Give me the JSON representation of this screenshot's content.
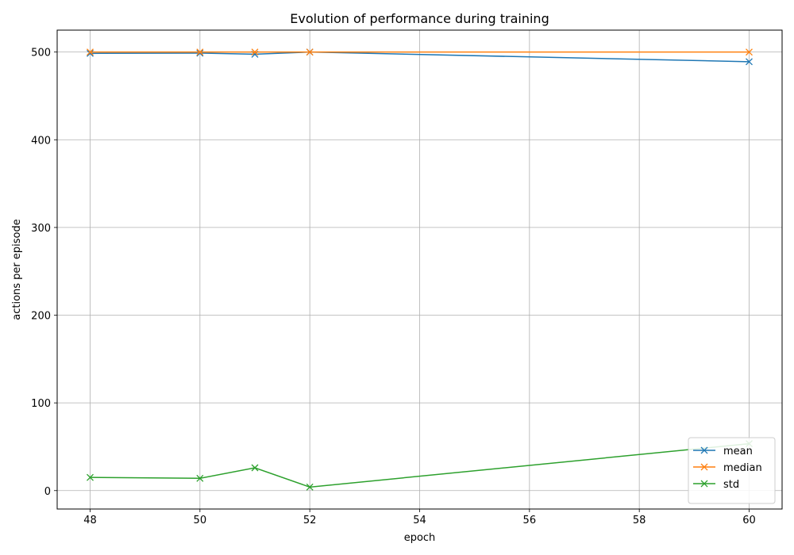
{
  "chart_data": {
    "type": "line",
    "title": "Evolution of performance during training",
    "xlabel": "epoch",
    "ylabel": "actions per episode",
    "x": [
      48,
      50,
      51,
      52,
      60
    ],
    "xlim": [
      47.4,
      60.6
    ],
    "ylim": [
      -21,
      525
    ],
    "xticks": [
      48,
      50,
      52,
      54,
      56,
      58,
      60
    ],
    "yticks": [
      0,
      100,
      200,
      300,
      400,
      500
    ],
    "grid": true,
    "legend_position": "lower right",
    "marker": "x",
    "series": [
      {
        "name": "mean",
        "color": "#1f77b4",
        "values": [
          498.5,
          498.8,
          497.5,
          500.0,
          489.0
        ]
      },
      {
        "name": "median",
        "color": "#ff7f0e",
        "values": [
          500.0,
          500.0,
          500.0,
          500.0,
          500.0
        ]
      },
      {
        "name": "std",
        "color": "#2ca02c",
        "values": [
          15.0,
          14.0,
          26.0,
          4.0,
          53.5
        ]
      }
    ]
  }
}
